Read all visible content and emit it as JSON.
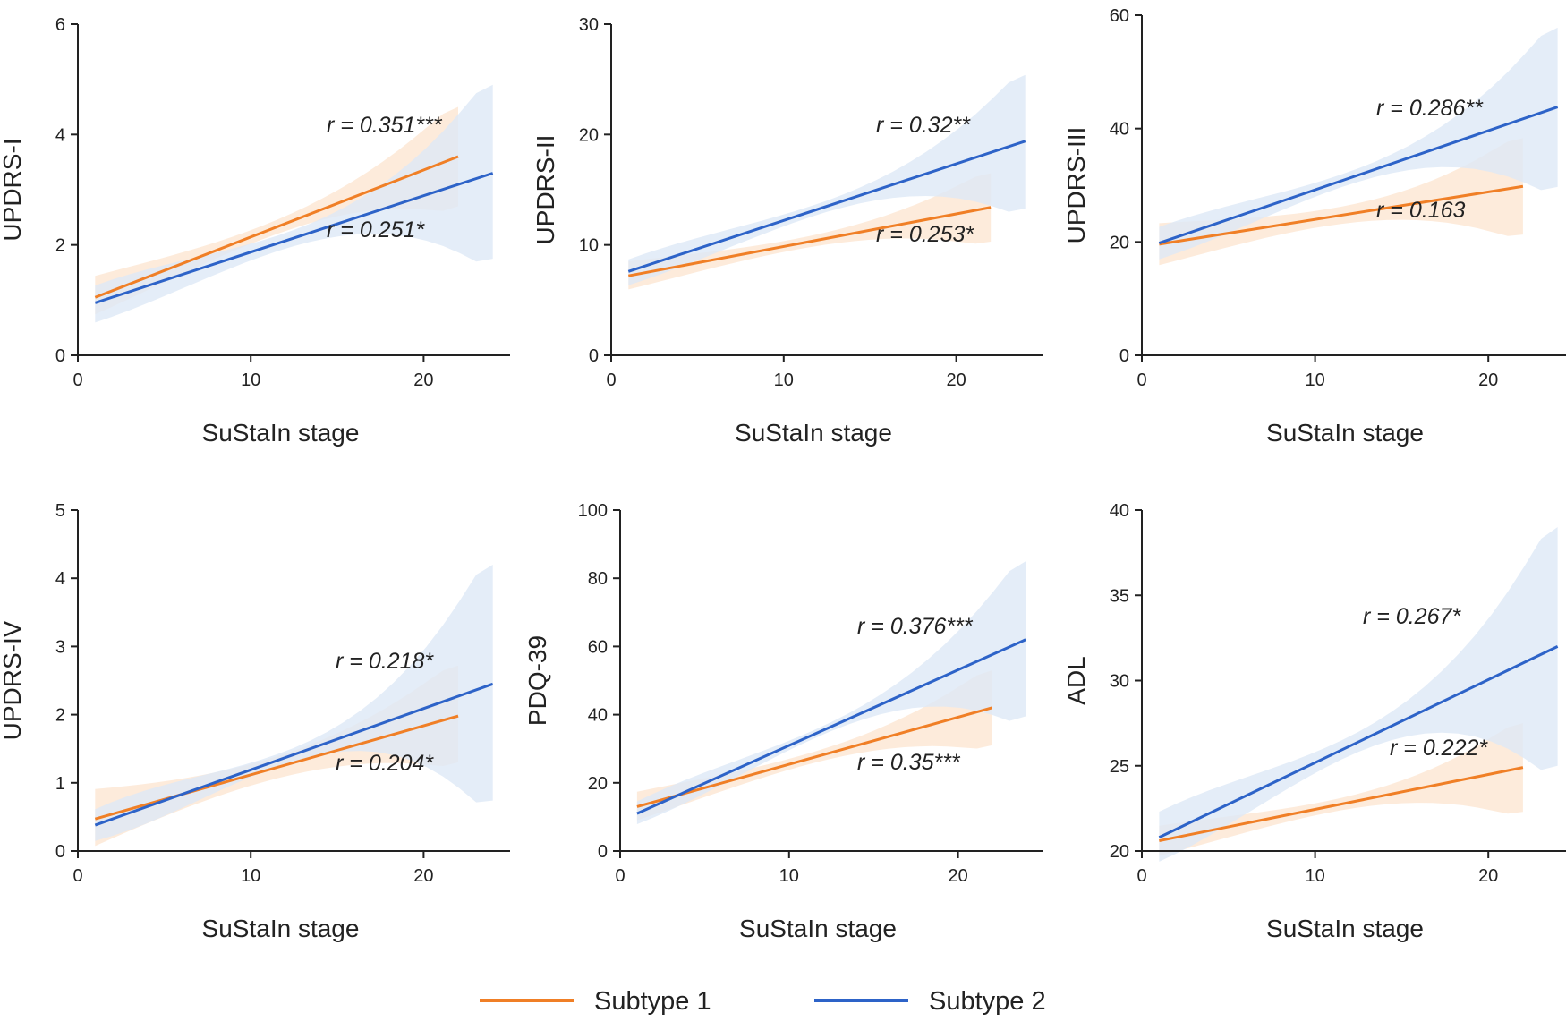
{
  "colors": {
    "subtype1": "#f07f26",
    "subtype2": "#2d63c8",
    "band1": "#fde6d2",
    "band2": "#dde8f6"
  },
  "legend": [
    {
      "label": "Subtype 1",
      "color": "#f07f26"
    },
    {
      "label": "Subtype 2",
      "color": "#2d63c8"
    }
  ],
  "chart_data": [
    {
      "type": "line",
      "xlabel": "SuStaIn stage",
      "ylabel": "UPDRS-I",
      "xlim": [
        0,
        25
      ],
      "ylim": [
        0,
        6
      ],
      "xticks": [
        0,
        10,
        20
      ],
      "yticks": [
        0,
        2,
        4,
        6
      ],
      "series": [
        {
          "name": "Subtype 1",
          "x": [
            1,
            22
          ],
          "y": [
            1.05,
            3.6
          ],
          "ci_lower": [
            0.7,
            2.7
          ],
          "ci_upper": [
            1.5,
            4.5
          ],
          "annotation": "r = 0.351***"
        },
        {
          "name": "Subtype 2",
          "x": [
            1,
            24
          ],
          "y": [
            0.95,
            3.3
          ],
          "ci_lower": [
            0.55,
            1.75
          ],
          "ci_upper": [
            1.3,
            4.9
          ],
          "annotation": "r = 0.251*"
        }
      ]
    },
    {
      "type": "line",
      "xlabel": "SuStaIn stage",
      "ylabel": "UPDRS-II",
      "xlim": [
        0,
        25
      ],
      "ylim": [
        0,
        30
      ],
      "xticks": [
        0,
        10,
        20
      ],
      "yticks": [
        0,
        10,
        20,
        30
      ],
      "series": [
        {
          "name": "Subtype 1",
          "x": [
            1,
            22
          ],
          "y": [
            7.2,
            13.4
          ],
          "ci_lower": [
            5.8,
            10.3
          ],
          "ci_upper": [
            8.7,
            16.5
          ],
          "annotation": "r = 0.253*"
        },
        {
          "name": "Subtype 2",
          "x": [
            1,
            24
          ],
          "y": [
            7.6,
            19.4
          ],
          "ci_lower": [
            6.2,
            13.3
          ],
          "ci_upper": [
            8.8,
            25.4
          ],
          "annotation": "r = 0.32**"
        }
      ]
    },
    {
      "type": "line",
      "xlabel": "SuStaIn stage",
      "ylabel": "UPDRS-III",
      "xlim": [
        0,
        25
      ],
      "ylim": [
        0,
        60
      ],
      "xticks": [
        0,
        10,
        20
      ],
      "yticks": [
        0,
        20,
        40,
        60
      ],
      "series": [
        {
          "name": "Subtype 1",
          "x": [
            1,
            22
          ],
          "y": [
            19.6,
            29.8
          ],
          "ci_lower": [
            15.4,
            21.3
          ],
          "ci_upper": [
            23.8,
            38.3
          ],
          "annotation": "r = 0.163"
        },
        {
          "name": "Subtype 2",
          "x": [
            1,
            24
          ],
          "y": [
            19.8,
            43.8
          ],
          "ci_lower": [
            16.6,
            29.7
          ],
          "ci_upper": [
            23.0,
            57.8
          ],
          "annotation": "r = 0.286**"
        }
      ]
    },
    {
      "type": "line",
      "xlabel": "SuStaIn stage",
      "ylabel": "UPDRS-IV",
      "xlim": [
        0,
        25
      ],
      "ylim": [
        0,
        5
      ],
      "xticks": [
        0,
        10,
        20
      ],
      "yticks": [
        0,
        1,
        2,
        3,
        4,
        5
      ],
      "series": [
        {
          "name": "Subtype 1",
          "x": [
            1,
            22
          ],
          "y": [
            0.47,
            1.98
          ],
          "ci_lower": [
            0.02,
            1.3
          ],
          "ci_upper": [
            0.97,
            2.72
          ],
          "annotation": "r = 0.204*"
        },
        {
          "name": "Subtype 2",
          "x": [
            1,
            24
          ],
          "y": [
            0.38,
            2.45
          ],
          "ci_lower": [
            0.12,
            0.74
          ],
          "ci_upper": [
            0.64,
            4.2
          ],
          "annotation": "r = 0.218*"
        }
      ]
    },
    {
      "type": "line",
      "xlabel": "SuStaIn stage",
      "ylabel": "PDQ-39",
      "xlim": [
        0,
        25
      ],
      "ylim": [
        0,
        100
      ],
      "xticks": [
        0,
        10,
        20
      ],
      "yticks": [
        0,
        20,
        40,
        60,
        80,
        100
      ],
      "series": [
        {
          "name": "Subtype 1",
          "x": [
            1,
            22
          ],
          "y": [
            13,
            42
          ],
          "ci_lower": [
            8.5,
            31
          ],
          "ci_upper": [
            18,
            53
          ],
          "annotation": "r = 0.35***"
        },
        {
          "name": "Subtype 2",
          "x": [
            1,
            24
          ],
          "y": [
            11,
            62
          ],
          "ci_lower": [
            7.5,
            39.5
          ],
          "ci_upper": [
            15,
            85
          ],
          "annotation": "r = 0.376***"
        }
      ]
    },
    {
      "type": "line",
      "xlabel": "SuStaIn stage",
      "ylabel": "ADL",
      "xlim": [
        0,
        25
      ],
      "ylim": [
        20,
        40
      ],
      "xticks": [
        0,
        10,
        20
      ],
      "yticks": [
        20,
        25,
        30,
        35,
        40
      ],
      "series": [
        {
          "name": "Subtype 1",
          "x": [
            1,
            22
          ],
          "y": [
            20.6,
            24.9
          ],
          "ci_lower": [
            19.6,
            22.3
          ],
          "ci_upper": [
            21.6,
            27.5
          ],
          "annotation": "r = 0.222*"
        },
        {
          "name": "Subtype 2",
          "x": [
            1,
            24
          ],
          "y": [
            20.8,
            32
          ],
          "ci_lower": [
            19.2,
            25
          ],
          "ci_upper": [
            22.5,
            39
          ],
          "annotation": "r = 0.267*"
        }
      ]
    }
  ]
}
